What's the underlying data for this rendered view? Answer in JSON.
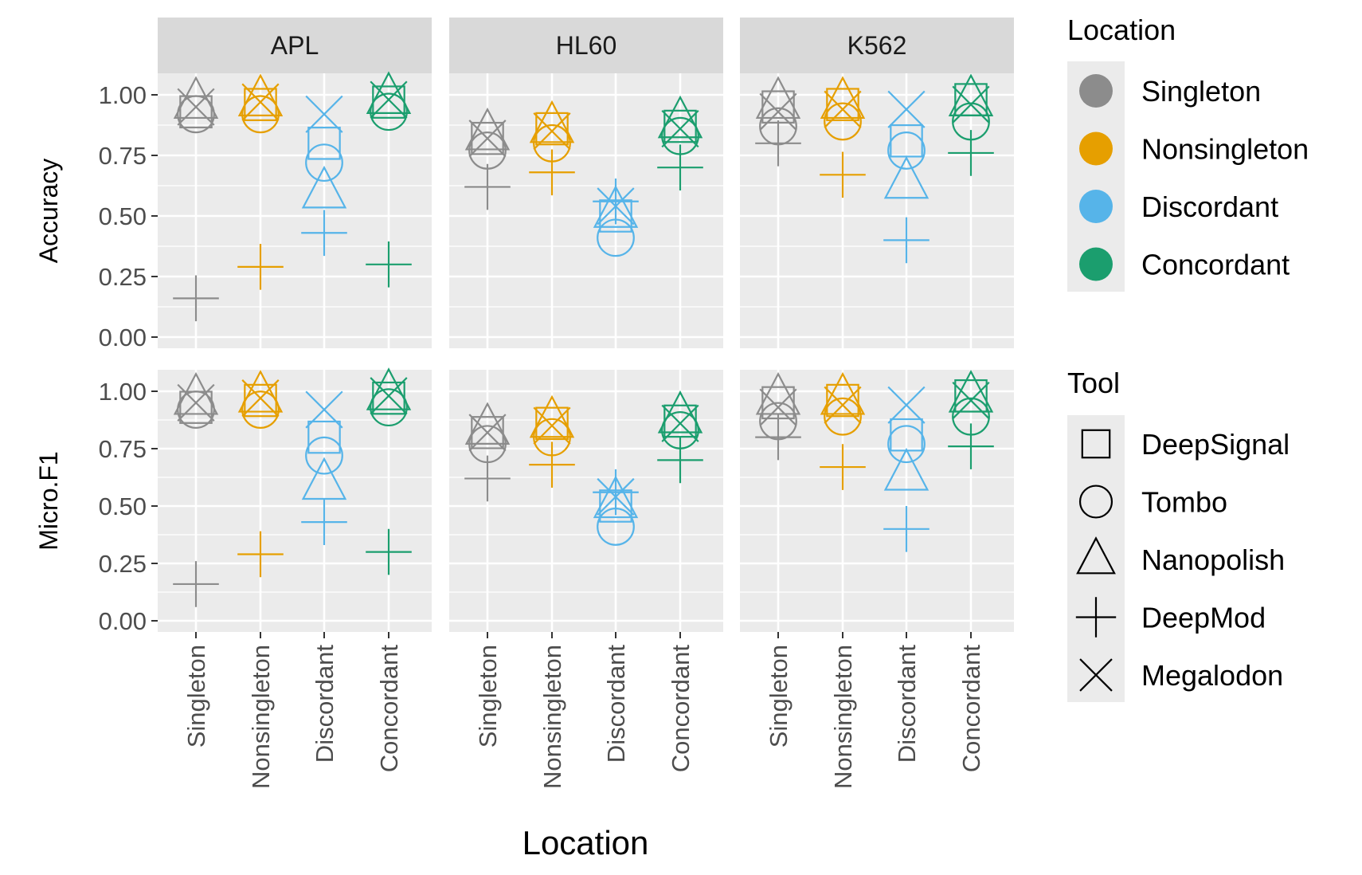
{
  "chart_data": {
    "type": "scatter",
    "x_label": "Location",
    "facet_cols": [
      "APL",
      "HL60",
      "K562"
    ],
    "facet_rows": [
      "Accuracy",
      "Micro.F1"
    ],
    "categories": [
      "Singleton",
      "Nonsingleton",
      "Discordant",
      "Concordant"
    ],
    "ylim": [
      0,
      1.05
    ],
    "y_ticks": [
      0,
      0.25,
      0.5,
      0.75,
      1.0
    ],
    "y_tick_labels": [
      "0.00",
      "0.25",
      "0.50",
      "0.75",
      "1.00"
    ],
    "colors": {
      "Singleton": "#8c8c8c",
      "Nonsingleton": "#e69f00",
      "Discordant": "#56b4e9",
      "Concordant": "#1b9e6e"
    },
    "tools": [
      "DeepSignal",
      "Tombo",
      "Nanopolish",
      "DeepMod",
      "Megalodon"
    ],
    "tool_shapes": {
      "DeepSignal": "square",
      "Tombo": "circle",
      "Nanopolish": "triangle",
      "DeepMod": "plus",
      "Megalodon": "cross"
    },
    "legend_location": {
      "title": "Location",
      "entries": [
        "Singleton",
        "Nonsingleton",
        "Discordant",
        "Concordant"
      ]
    },
    "legend_tool": {
      "title": "Tool",
      "entries": [
        "DeepSignal",
        "Tombo",
        "Nanopolish",
        "DeepMod",
        "Megalodon"
      ]
    },
    "values": {
      "Accuracy": {
        "APL": {
          "Singleton": {
            "DeepSignal": 0.93,
            "Tombo": 0.92,
            "Nanopolish": 0.97,
            "DeepMod": 0.16,
            "Megalodon": 0.95
          },
          "Nonsingleton": {
            "DeepSignal": 0.96,
            "Tombo": 0.92,
            "Nanopolish": 0.98,
            "DeepMod": 0.29,
            "Megalodon": 0.97
          },
          "Discordant": {
            "DeepSignal": 0.8,
            "Tombo": 0.72,
            "Nanopolish": 0.6,
            "DeepMod": 0.43,
            "Megalodon": 0.92
          },
          "Concordant": {
            "DeepSignal": 0.97,
            "Tombo": 0.93,
            "Nanopolish": 0.99,
            "DeepMod": 0.3,
            "Megalodon": 0.98
          }
        },
        "HL60": {
          "Singleton": {
            "DeepSignal": 0.82,
            "Tombo": 0.77,
            "Nanopolish": 0.84,
            "DeepMod": 0.62,
            "Megalodon": 0.82
          },
          "Nonsingleton": {
            "DeepSignal": 0.86,
            "Tombo": 0.8,
            "Nanopolish": 0.87,
            "DeepMod": 0.68,
            "Megalodon": 0.85
          },
          "Discordant": {
            "DeepSignal": 0.5,
            "Tombo": 0.41,
            "Nanopolish": 0.52,
            "DeepMod": 0.56,
            "Megalodon": 0.54
          },
          "Concordant": {
            "DeepSignal": 0.87,
            "Tombo": 0.83,
            "Nanopolish": 0.89,
            "DeepMod": 0.7,
            "Megalodon": 0.86
          }
        },
        "K562": {
          "Singleton": {
            "DeepSignal": 0.95,
            "Tombo": 0.87,
            "Nanopolish": 0.97,
            "DeepMod": 0.8,
            "Megalodon": 0.93
          },
          "Nonsingleton": {
            "DeepSignal": 0.96,
            "Tombo": 0.89,
            "Nanopolish": 0.97,
            "DeepMod": 0.67,
            "Megalodon": 0.94
          },
          "Discordant": {
            "DeepSignal": 0.81,
            "Tombo": 0.77,
            "Nanopolish": 0.64,
            "DeepMod": 0.4,
            "Megalodon": 0.94
          },
          "Concordant": {
            "DeepSignal": 0.98,
            "Tombo": 0.89,
            "Nanopolish": 0.98,
            "DeepMod": 0.76,
            "Megalodon": 0.96
          }
        }
      },
      "Micro.F1": {
        "APL": {
          "Singleton": {
            "DeepSignal": 0.93,
            "Tombo": 0.92,
            "Nanopolish": 0.97,
            "DeepMod": 0.16,
            "Megalodon": 0.95
          },
          "Nonsingleton": {
            "DeepSignal": 0.96,
            "Tombo": 0.92,
            "Nanopolish": 0.98,
            "DeepMod": 0.29,
            "Megalodon": 0.97
          },
          "Discordant": {
            "DeepSignal": 0.8,
            "Tombo": 0.72,
            "Nanopolish": 0.6,
            "DeepMod": 0.43,
            "Megalodon": 0.92
          },
          "Concordant": {
            "DeepSignal": 0.97,
            "Tombo": 0.93,
            "Nanopolish": 0.99,
            "DeepMod": 0.3,
            "Megalodon": 0.98
          }
        },
        "HL60": {
          "Singleton": {
            "DeepSignal": 0.82,
            "Tombo": 0.77,
            "Nanopolish": 0.84,
            "DeepMod": 0.62,
            "Megalodon": 0.82
          },
          "Nonsingleton": {
            "DeepSignal": 0.86,
            "Tombo": 0.8,
            "Nanopolish": 0.87,
            "DeepMod": 0.68,
            "Megalodon": 0.85
          },
          "Discordant": {
            "DeepSignal": 0.5,
            "Tombo": 0.41,
            "Nanopolish": 0.52,
            "DeepMod": 0.56,
            "Megalodon": 0.54
          },
          "Concordant": {
            "DeepSignal": 0.87,
            "Tombo": 0.83,
            "Nanopolish": 0.89,
            "DeepMod": 0.7,
            "Megalodon": 0.86
          }
        },
        "K562": {
          "Singleton": {
            "DeepSignal": 0.95,
            "Tombo": 0.87,
            "Nanopolish": 0.97,
            "DeepMod": 0.8,
            "Megalodon": 0.93
          },
          "Nonsingleton": {
            "DeepSignal": 0.96,
            "Tombo": 0.89,
            "Nanopolish": 0.97,
            "DeepMod": 0.67,
            "Megalodon": 0.94
          },
          "Discordant": {
            "DeepSignal": 0.81,
            "Tombo": 0.77,
            "Nanopolish": 0.64,
            "DeepMod": 0.4,
            "Megalodon": 0.94
          },
          "Concordant": {
            "DeepSignal": 0.98,
            "Tombo": 0.89,
            "Nanopolish": 0.98,
            "DeepMod": 0.76,
            "Megalodon": 0.96
          }
        }
      }
    }
  }
}
